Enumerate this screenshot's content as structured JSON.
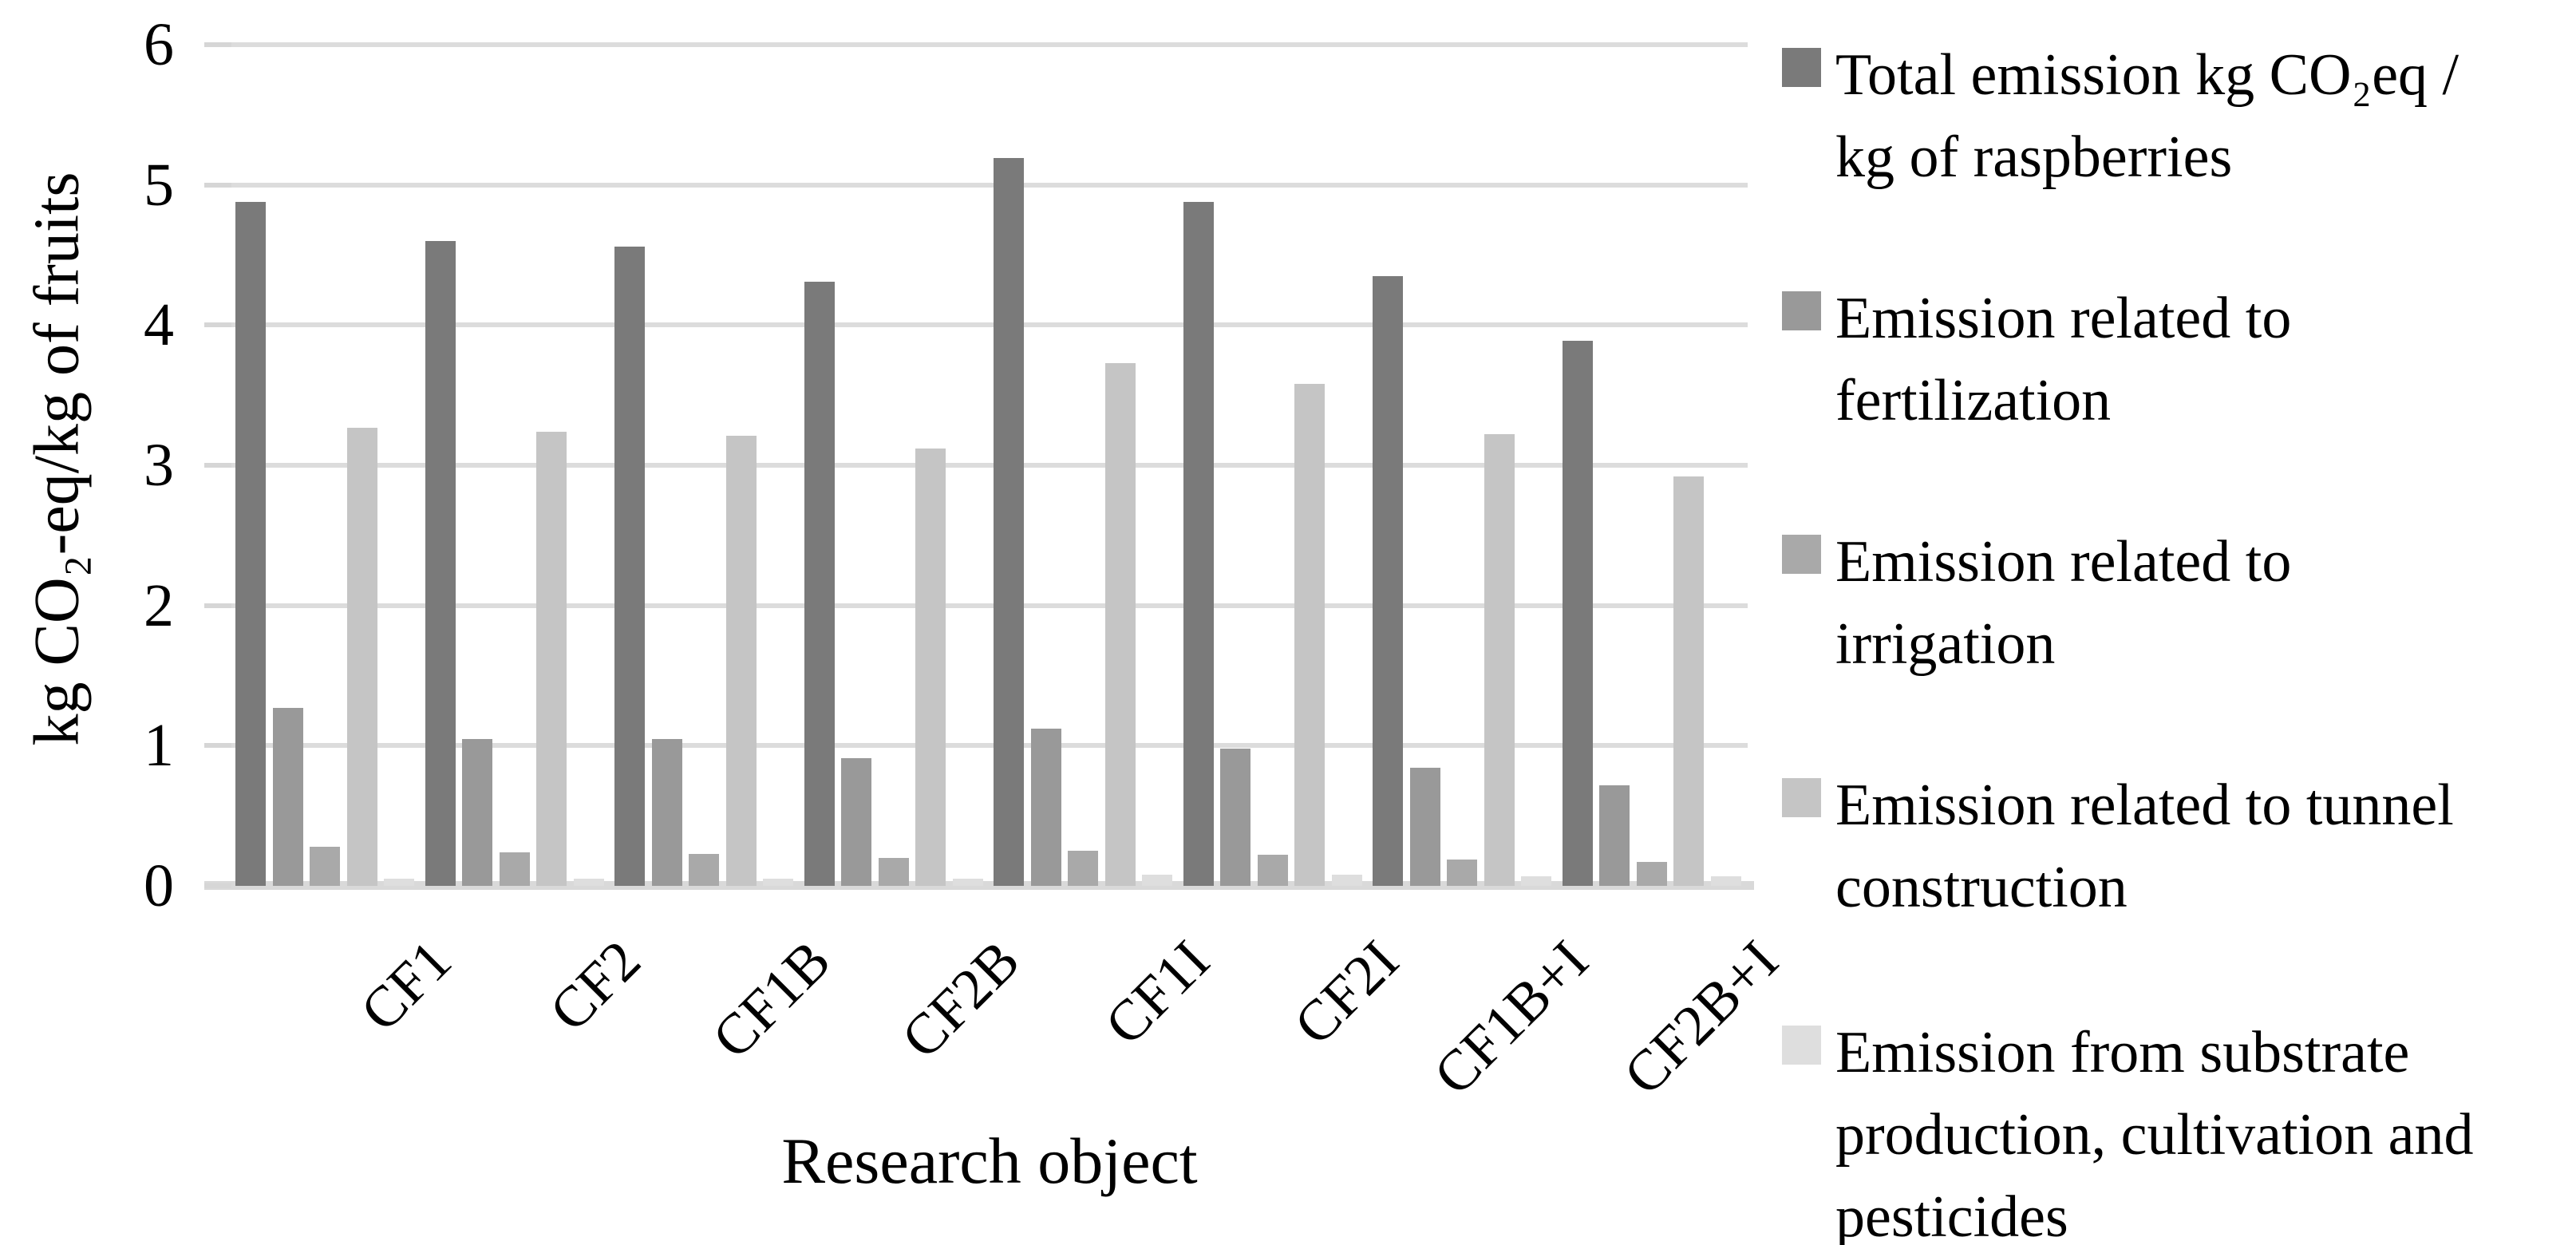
{
  "chart_data": {
    "type": "bar",
    "title": "",
    "xlabel": "Research object",
    "ylabel": "kg CO₂-eq/kg of fruits",
    "ylim": [
      0,
      6
    ],
    "y_ticks": [
      0,
      1,
      2,
      3,
      4,
      5,
      6
    ],
    "grid": "horizontal",
    "legend_position": "right",
    "categories": [
      "CF1",
      "CF2",
      "CF1B",
      "CF2B",
      "CF1I",
      "CF2I",
      "CF1B+I",
      "CF2B+I"
    ],
    "series": [
      {
        "name": "Total emission kg CO₂eq / kg of raspberries",
        "label_lines": [
          "Total emission kg CO₂eq /",
          "kg of raspberries"
        ],
        "color": "#7a7a7a",
        "values": [
          4.88,
          4.6,
          4.56,
          4.31,
          5.19,
          4.88,
          4.35,
          3.89
        ]
      },
      {
        "name": "Emission related to fertilization",
        "label_lines": [
          "Emission related to",
          "fertilization"
        ],
        "color": "#999999",
        "values": [
          1.27,
          1.05,
          1.05,
          0.91,
          1.12,
          0.98,
          0.84,
          0.72
        ]
      },
      {
        "name": "Emission related to irrigation",
        "label_lines": [
          "Emission related to",
          "irrigation"
        ],
        "color": "#a9a9a9",
        "values": [
          0.28,
          0.24,
          0.23,
          0.2,
          0.25,
          0.22,
          0.19,
          0.17
        ]
      },
      {
        "name": "Emission related to tunnel construction",
        "label_lines": [
          "Emission related to tunnel",
          "construction"
        ],
        "color": "#c5c5c5",
        "values": [
          3.27,
          3.24,
          3.21,
          3.12,
          3.73,
          3.58,
          3.22,
          2.92
        ]
      },
      {
        "name": "Emission from substrate production, cultivation and pesticides",
        "label_lines": [
          "Emission from substrate",
          "production, cultivation and",
          "pesticides"
        ],
        "color": "#dedede",
        "values": [
          0.05,
          0.05,
          0.05,
          0.05,
          0.08,
          0.08,
          0.07,
          0.07
        ]
      }
    ],
    "axis_colors": {
      "gridline": "#dcdcdc",
      "baseline": "#d9d9d9",
      "tick": "#d6d6d6",
      "text": "#000000"
    }
  }
}
